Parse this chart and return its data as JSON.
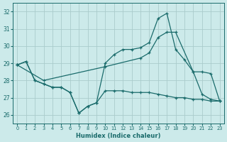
{
  "xlabel": "Humidex (Indice chaleur)",
  "bg_color": "#cceaea",
  "grid_color": "#aacccc",
  "line_color": "#1a6b6b",
  "xlim": [
    -0.5,
    23.5
  ],
  "ylim": [
    25.5,
    32.5
  ],
  "yticks": [
    26,
    27,
    28,
    29,
    30,
    31,
    32
  ],
  "xticks": [
    0,
    1,
    2,
    3,
    4,
    5,
    6,
    7,
    8,
    9,
    10,
    11,
    12,
    13,
    14,
    15,
    16,
    17,
    18,
    19,
    20,
    21,
    22,
    23
  ],
  "line1_x": [
    0,
    1,
    2,
    3,
    4,
    5,
    6,
    7,
    8,
    9,
    10,
    11,
    12,
    13,
    14,
    15,
    16,
    17,
    18,
    19,
    20,
    21,
    22,
    23
  ],
  "line1_y": [
    28.9,
    29.1,
    28.0,
    27.8,
    27.6,
    27.6,
    27.3,
    26.1,
    26.5,
    26.7,
    27.4,
    27.4,
    27.4,
    27.3,
    27.3,
    27.3,
    27.2,
    27.1,
    27.0,
    27.0,
    26.9,
    26.9,
    26.8,
    26.8
  ],
  "line2_x": [
    0,
    1,
    2,
    3,
    4,
    5,
    6,
    7,
    8,
    9,
    10,
    11,
    12,
    13,
    14,
    15,
    16,
    17,
    18,
    19,
    20,
    21,
    22,
    23
  ],
  "line2_y": [
    28.9,
    29.1,
    28.0,
    27.8,
    27.6,
    27.6,
    27.3,
    26.1,
    26.5,
    26.7,
    29.0,
    29.5,
    29.8,
    29.8,
    29.9,
    30.2,
    31.6,
    31.9,
    29.8,
    29.2,
    28.5,
    27.2,
    26.9,
    26.8
  ],
  "line3_x": [
    0,
    3,
    10,
    14,
    15,
    16,
    17,
    18,
    20,
    21,
    22,
    23
  ],
  "line3_y": [
    28.9,
    28.0,
    28.8,
    29.3,
    29.6,
    30.5,
    30.8,
    30.8,
    28.5,
    28.5,
    28.4,
    26.8
  ]
}
